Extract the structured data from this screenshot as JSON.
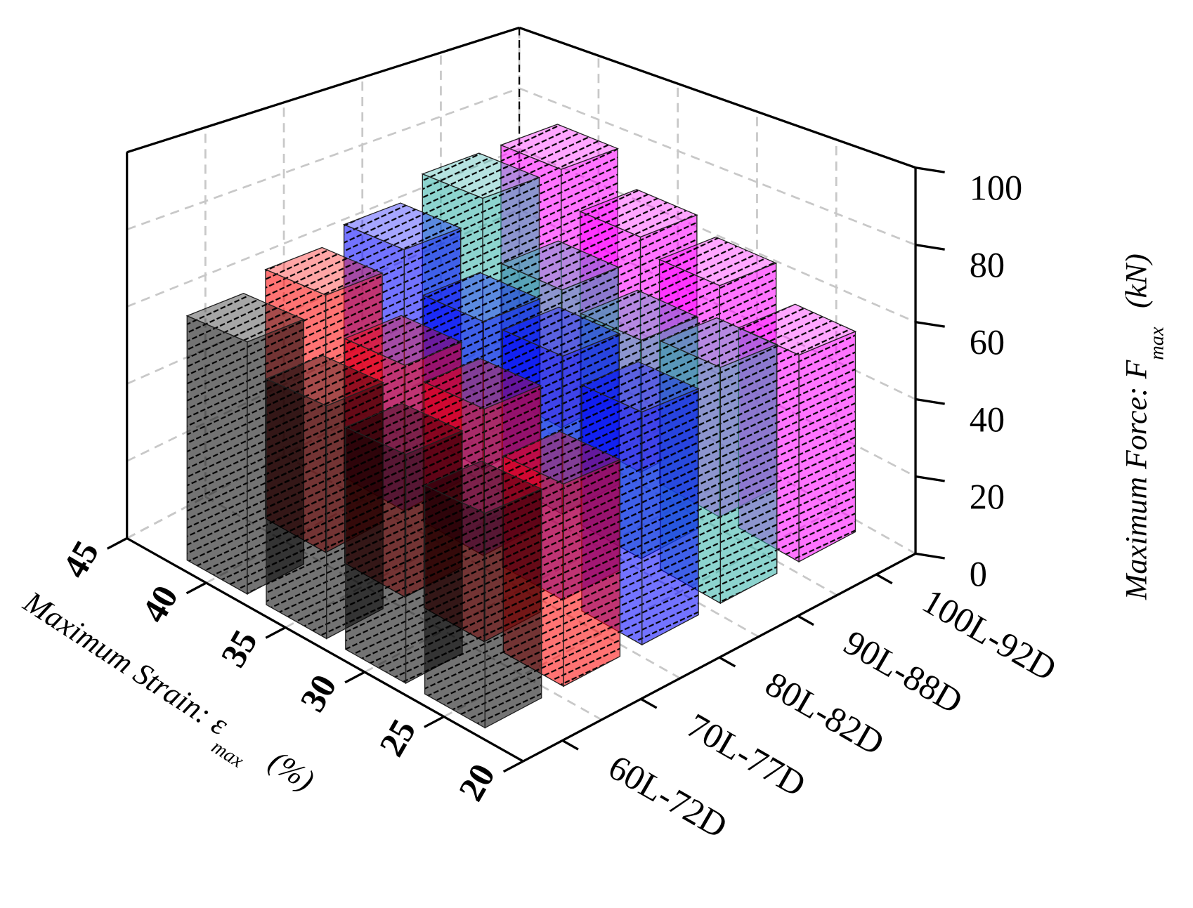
{
  "chart_data": {
    "type": "bar3d",
    "x_label": "Maximum Strain: ε",
    "x_label_sub": "max",
    "x_label_unit": "(%)",
    "y_label": "Maximum Force: F",
    "y_label_sub": "max",
    "y_label_unit": "(kN)",
    "x": [
      40,
      35,
      30,
      25
    ],
    "xlim": [
      20,
      45
    ],
    "xticks": [
      20,
      25,
      30,
      35,
      40,
      45
    ],
    "ylim": [
      0,
      100
    ],
    "yticks": [
      0,
      20,
      40,
      60,
      80,
      100
    ],
    "grid": true,
    "series": [
      {
        "name": "60L-72D",
        "color": "#000000",
        "values": [
          62,
          55,
          52,
          47
        ]
      },
      {
        "name": "70L-77D",
        "color": "#ff0000",
        "values": [
          66,
          57,
          55,
          46
        ]
      },
      {
        "name": "80L-82D",
        "color": "#0000ff",
        "values": [
          70,
          60,
          60,
          55
        ]
      },
      {
        "name": "90L-88D",
        "color": "#2fb0a8",
        "values": [
          76,
          60,
          56,
          58
        ]
      },
      {
        "name": "100L-92D",
        "color": "#ff00ff",
        "values": [
          76,
          66,
          62,
          53
        ]
      }
    ]
  }
}
